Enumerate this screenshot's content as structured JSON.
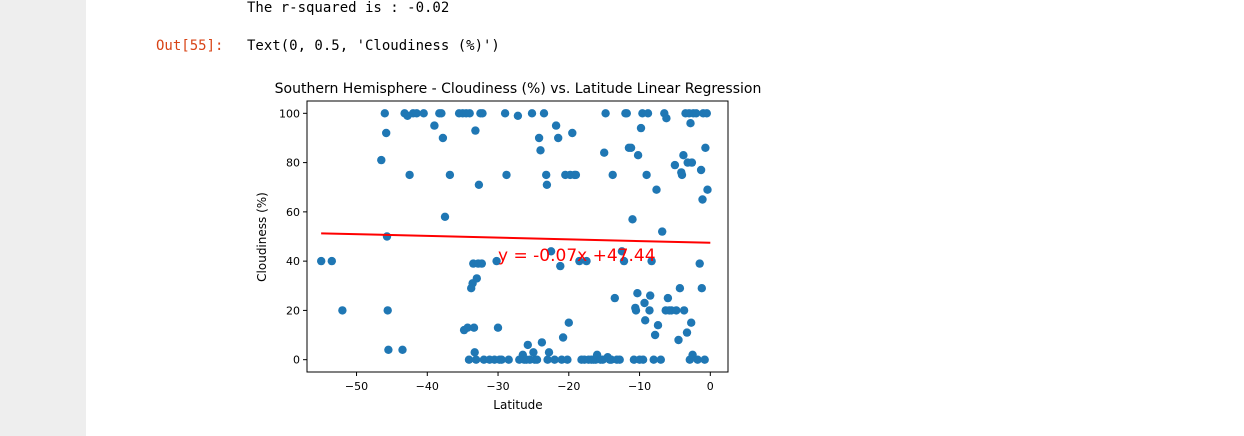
{
  "notebook": {
    "stdout_text": "The r-squared is : -0.02",
    "out_prompt": "Out[55]:",
    "out_text": "Text(0, 0.5, 'Cloudiness (%)')"
  },
  "chart_data": {
    "type": "scatter",
    "title": "Southern Hemisphere - Cloudiness (%) vs. Latitude Linear Regression",
    "xlabel": "Latitude",
    "ylabel": "Cloudiness (%)",
    "xlim": [
      -57,
      2.5
    ],
    "ylim": [
      -5,
      105
    ],
    "xticks": [
      -50,
      -40,
      -30,
      -20,
      -10,
      0
    ],
    "xtick_labels": [
      "−50",
      "−40",
      "−30",
      "−20",
      "−10",
      "0"
    ],
    "yticks": [
      0,
      20,
      40,
      60,
      80,
      100
    ],
    "ytick_labels": [
      "0",
      "20",
      "40",
      "60",
      "80",
      "100"
    ],
    "grid": false,
    "point_color": "#1f77b4",
    "line_color": "#ff0000",
    "regression": {
      "slope": -0.07,
      "intercept": 47.44,
      "x_range": [
        -55,
        0
      ]
    },
    "annotation": {
      "text": "y = -0.07x +47.44",
      "x": -30,
      "y": 40,
      "color": "#ff0000"
    },
    "points": [
      [
        -55,
        40
      ],
      [
        -53.5,
        40
      ],
      [
        -52,
        20
      ],
      [
        -46.5,
        81
      ],
      [
        -46,
        100
      ],
      [
        -45.8,
        92
      ],
      [
        -45.7,
        50
      ],
      [
        -45.6,
        20
      ],
      [
        -45.5,
        4
      ],
      [
        -43.5,
        4
      ],
      [
        -43.2,
        100
      ],
      [
        -42.8,
        99
      ],
      [
        -42.5,
        75
      ],
      [
        -42,
        100
      ],
      [
        -41.5,
        100
      ],
      [
        -40.5,
        100
      ],
      [
        -39,
        95
      ],
      [
        -38.3,
        100
      ],
      [
        -38,
        100
      ],
      [
        -37.8,
        90
      ],
      [
        -37.5,
        58
      ],
      [
        -36.8,
        75
      ],
      [
        -35.5,
        100
      ],
      [
        -35,
        100
      ],
      [
        -34.8,
        12
      ],
      [
        -34.5,
        100
      ],
      [
        -34.3,
        13
      ],
      [
        -34,
        100
      ],
      [
        -34.1,
        0
      ],
      [
        -33.8,
        29
      ],
      [
        -33.6,
        31
      ],
      [
        -33.5,
        39
      ],
      [
        -33.4,
        13
      ],
      [
        -33.3,
        3
      ],
      [
        -33.2,
        93
      ],
      [
        -33.1,
        0
      ],
      [
        -33,
        33
      ],
      [
        -32.8,
        39
      ],
      [
        -32.7,
        71
      ],
      [
        -32.5,
        100
      ],
      [
        -32.3,
        39
      ],
      [
        -32.2,
        100
      ],
      [
        -32,
        0
      ],
      [
        -31.2,
        0
      ],
      [
        -30.5,
        0
      ],
      [
        -30.2,
        40
      ],
      [
        -30,
        13
      ],
      [
        -29.8,
        0
      ],
      [
        -29.5,
        0
      ],
      [
        -29,
        100
      ],
      [
        -28.8,
        75
      ],
      [
        -28.5,
        0
      ],
      [
        -27.2,
        99
      ],
      [
        -27,
        0
      ],
      [
        -26.5,
        2
      ],
      [
        -26.3,
        0
      ],
      [
        -26,
        0
      ],
      [
        -25.8,
        6
      ],
      [
        -25.5,
        0
      ],
      [
        -25.2,
        100
      ],
      [
        -25,
        3
      ],
      [
        -24.8,
        0
      ],
      [
        -24.5,
        0
      ],
      [
        -24.2,
        90
      ],
      [
        -24,
        85
      ],
      [
        -23.8,
        7
      ],
      [
        -23.5,
        100
      ],
      [
        -23.2,
        75
      ],
      [
        -23.1,
        71
      ],
      [
        -23,
        0
      ],
      [
        -22.8,
        3
      ],
      [
        -22.5,
        44
      ],
      [
        -22,
        0
      ],
      [
        -21.8,
        95
      ],
      [
        -21.5,
        90
      ],
      [
        -21.2,
        38
      ],
      [
        -21,
        0
      ],
      [
        -20.8,
        9
      ],
      [
        -20.5,
        75
      ],
      [
        -20.2,
        0
      ],
      [
        -20,
        15
      ],
      [
        -19.8,
        75
      ],
      [
        -19.5,
        92
      ],
      [
        -19.2,
        75
      ],
      [
        -19,
        75
      ],
      [
        -18.5,
        40
      ],
      [
        -18.2,
        0
      ],
      [
        -17.8,
        0
      ],
      [
        -17.5,
        40
      ],
      [
        -17.2,
        0
      ],
      [
        -16.8,
        0
      ],
      [
        -16.5,
        0
      ],
      [
        -16.2,
        0
      ],
      [
        -16,
        2
      ],
      [
        -15.5,
        0
      ],
      [
        -15.2,
        0
      ],
      [
        -15,
        84
      ],
      [
        -14.8,
        100
      ],
      [
        -14.5,
        1
      ],
      [
        -14.2,
        0
      ],
      [
        -14,
        0
      ],
      [
        -13.8,
        75
      ],
      [
        -13.5,
        25
      ],
      [
        -13.2,
        0
      ],
      [
        -12.8,
        0
      ],
      [
        -12.5,
        44
      ],
      [
        -12.2,
        40
      ],
      [
        -12,
        100
      ],
      [
        -11.8,
        100
      ],
      [
        -11.5,
        86
      ],
      [
        -11.2,
        86
      ],
      [
        -11,
        57
      ],
      [
        -10.8,
        0
      ],
      [
        -10.6,
        21
      ],
      [
        -10.5,
        20
      ],
      [
        -10.3,
        27
      ],
      [
        -10.2,
        83
      ],
      [
        -10,
        0
      ],
      [
        -9.8,
        94
      ],
      [
        -9.6,
        100
      ],
      [
        -9.5,
        0
      ],
      [
        -9.3,
        23
      ],
      [
        -9.2,
        16
      ],
      [
        -9,
        75
      ],
      [
        -8.8,
        100
      ],
      [
        -8.6,
        20
      ],
      [
        -8.5,
        26
      ],
      [
        -8.3,
        40
      ],
      [
        -8,
        0
      ],
      [
        -7.8,
        10
      ],
      [
        -7.6,
        69
      ],
      [
        -7.4,
        14
      ],
      [
        -7,
        0
      ],
      [
        -6.8,
        52
      ],
      [
        -6.5,
        100
      ],
      [
        -6.3,
        20
      ],
      [
        -6.2,
        98
      ],
      [
        -6,
        25
      ],
      [
        -5.8,
        20
      ],
      [
        -5.5,
        20
      ],
      [
        -5,
        79
      ],
      [
        -4.8,
        20
      ],
      [
        -4.5,
        8
      ],
      [
        -4.3,
        29
      ],
      [
        -4.1,
        76
      ],
      [
        -4,
        75
      ],
      [
        -3.8,
        83
      ],
      [
        -3.7,
        20
      ],
      [
        -3.5,
        100
      ],
      [
        -3.3,
        11
      ],
      [
        -3.2,
        80
      ],
      [
        -3,
        100
      ],
      [
        -2.9,
        0
      ],
      [
        -2.8,
        96
      ],
      [
        -2.7,
        15
      ],
      [
        -2.6,
        80
      ],
      [
        -2.5,
        2
      ],
      [
        -2.4,
        100
      ],
      [
        -2,
        100
      ],
      [
        -1.8,
        0
      ],
      [
        -1.5,
        39
      ],
      [
        -1.3,
        77
      ],
      [
        -1.2,
        29
      ],
      [
        -1.1,
        65
      ],
      [
        -1,
        100
      ],
      [
        -0.8,
        0
      ],
      [
        -0.7,
        86
      ],
      [
        -0.5,
        100
      ],
      [
        -0.4,
        69
      ]
    ]
  }
}
